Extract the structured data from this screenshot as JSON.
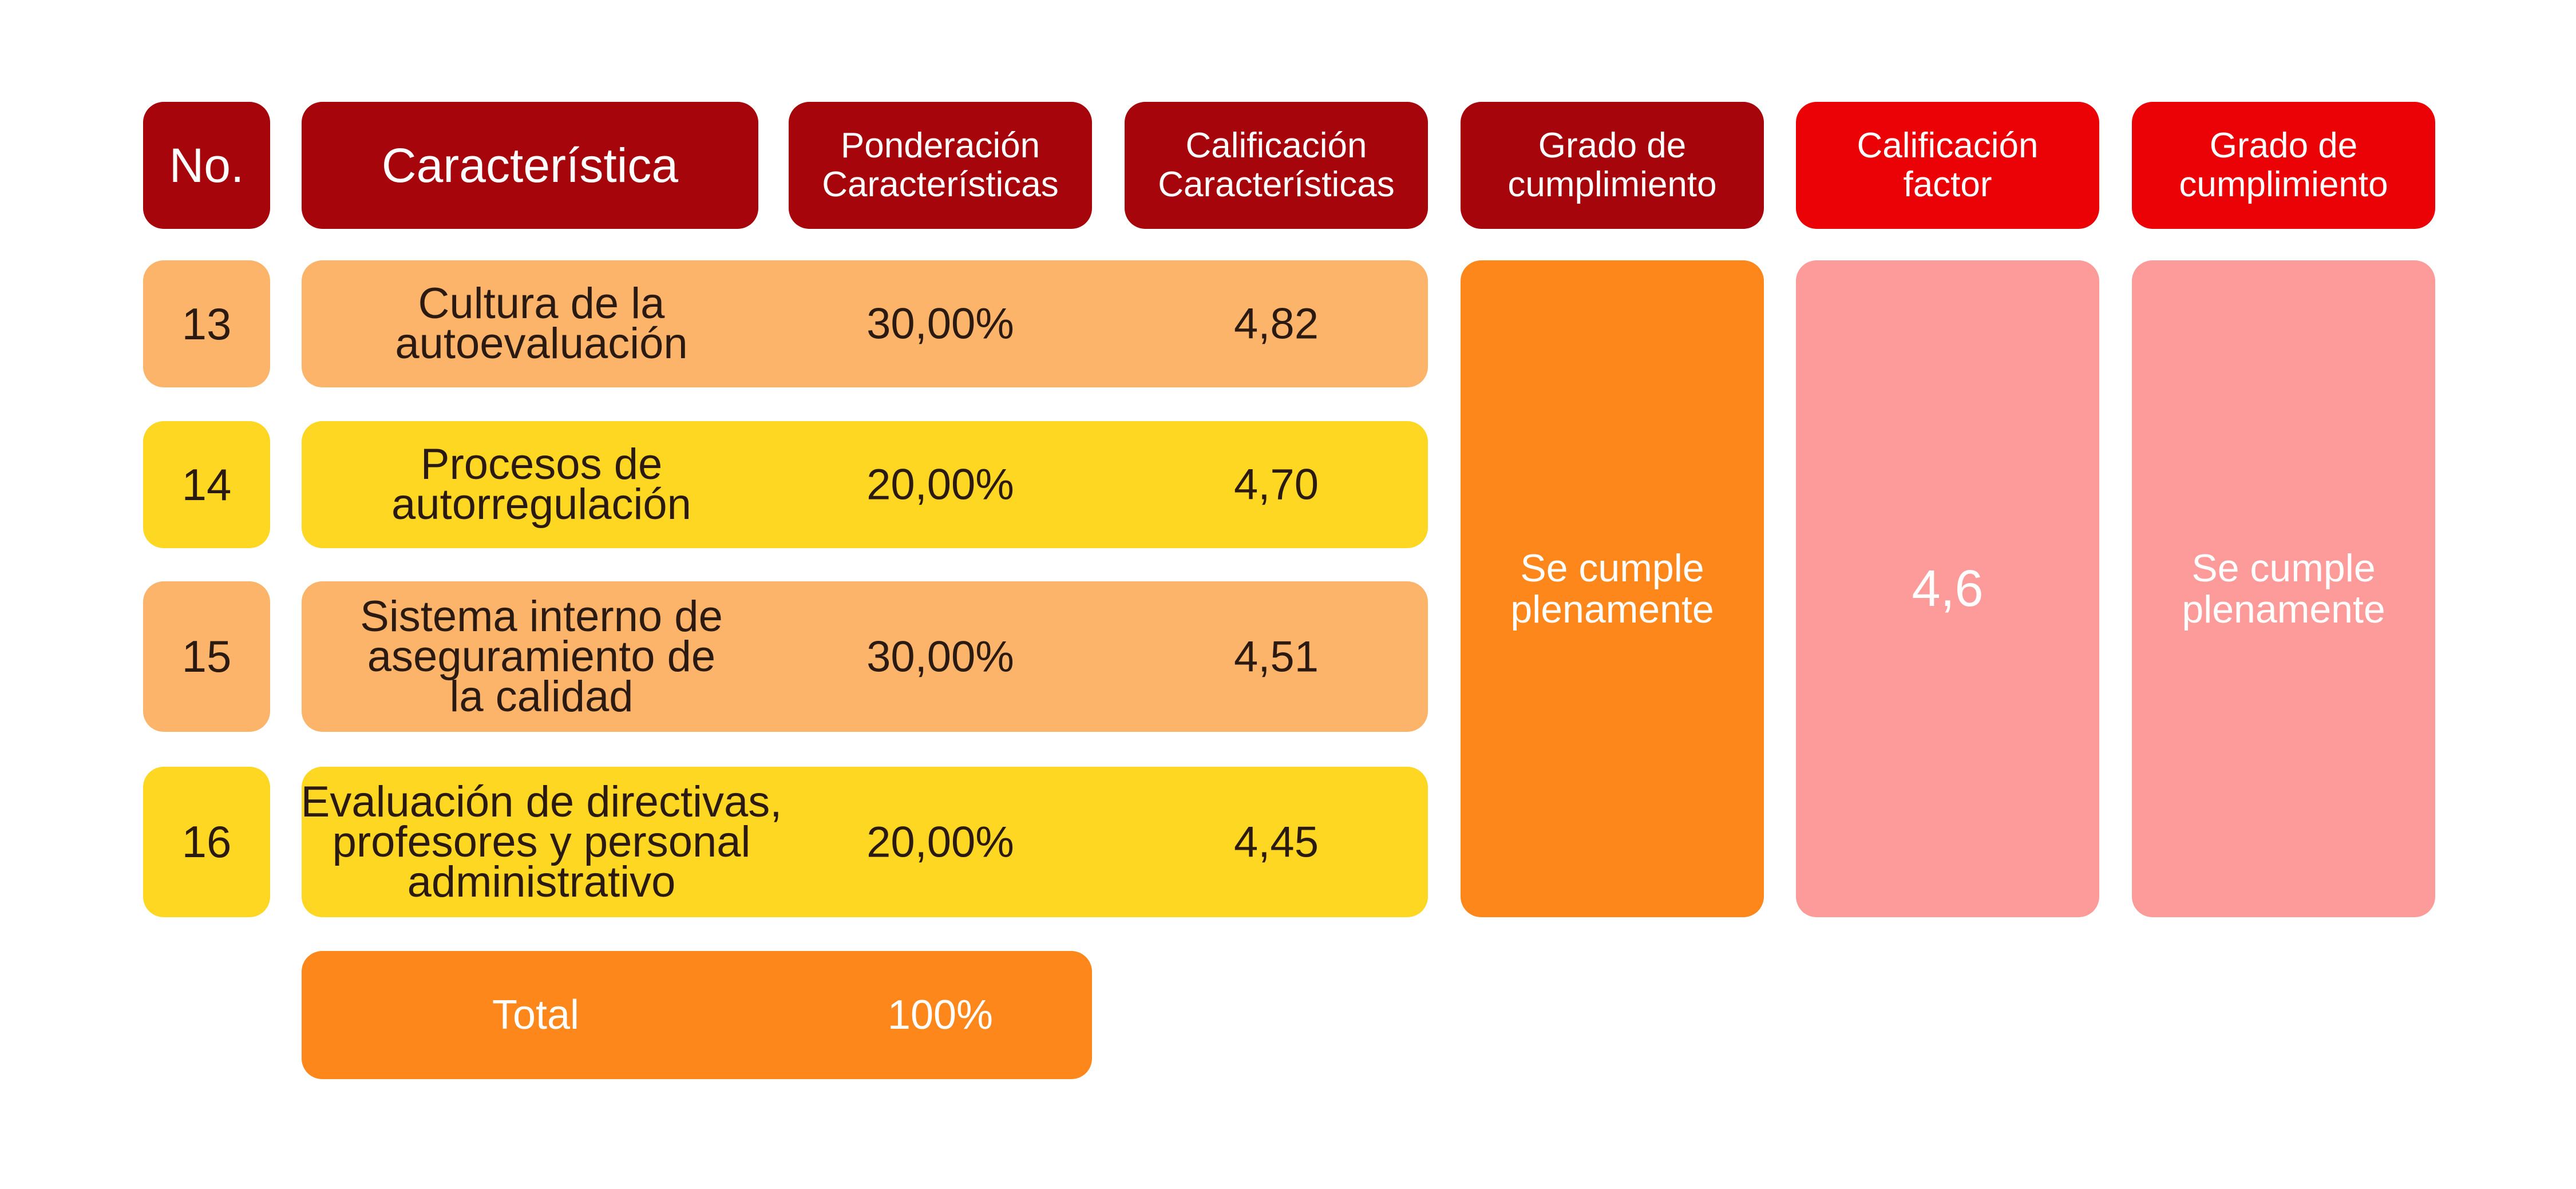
{
  "headers": {
    "no": "No.",
    "characteristic": "Característica",
    "weighting": "Ponderación\nCaracterísticas",
    "rating": "Calificación\nCaracterísticas",
    "compliance": "Grado de\ncumplimiento",
    "factor_rating": "Calificación\nfactor",
    "factor_compliance": "Grado de\ncumplimiento"
  },
  "rows": [
    {
      "no": "13",
      "characteristic": "Cultura de la\nautoevaluación",
      "weighting": "30,00%",
      "rating": "4,82"
    },
    {
      "no": "14",
      "characteristic": "Procesos de\nautorregulación",
      "weighting": "20,00%",
      "rating": "4,70"
    },
    {
      "no": "15",
      "characteristic": "Sistema interno de\naseguramiento de\nla calidad",
      "weighting": "30,00%",
      "rating": "4,51"
    },
    {
      "no": "16",
      "characteristic": "Evaluación de directivas,\nprofesores y personal\nadministrativo",
      "weighting": "20,00%",
      "rating": "4,45"
    }
  ],
  "compliance_value": "Se cumple\nplenamente",
  "factor_rating_value": "4,6",
  "factor_compliance_value": "Se cumple\nplenamente",
  "total": {
    "label": "Total",
    "value": "100%"
  },
  "colors": {
    "header_dark": "#a5050b",
    "header_red": "#eb0207",
    "row_peach": "#fbb469",
    "row_yellow": "#fdd722",
    "orange": "#fd871b",
    "pink": "#fc9b9a"
  }
}
